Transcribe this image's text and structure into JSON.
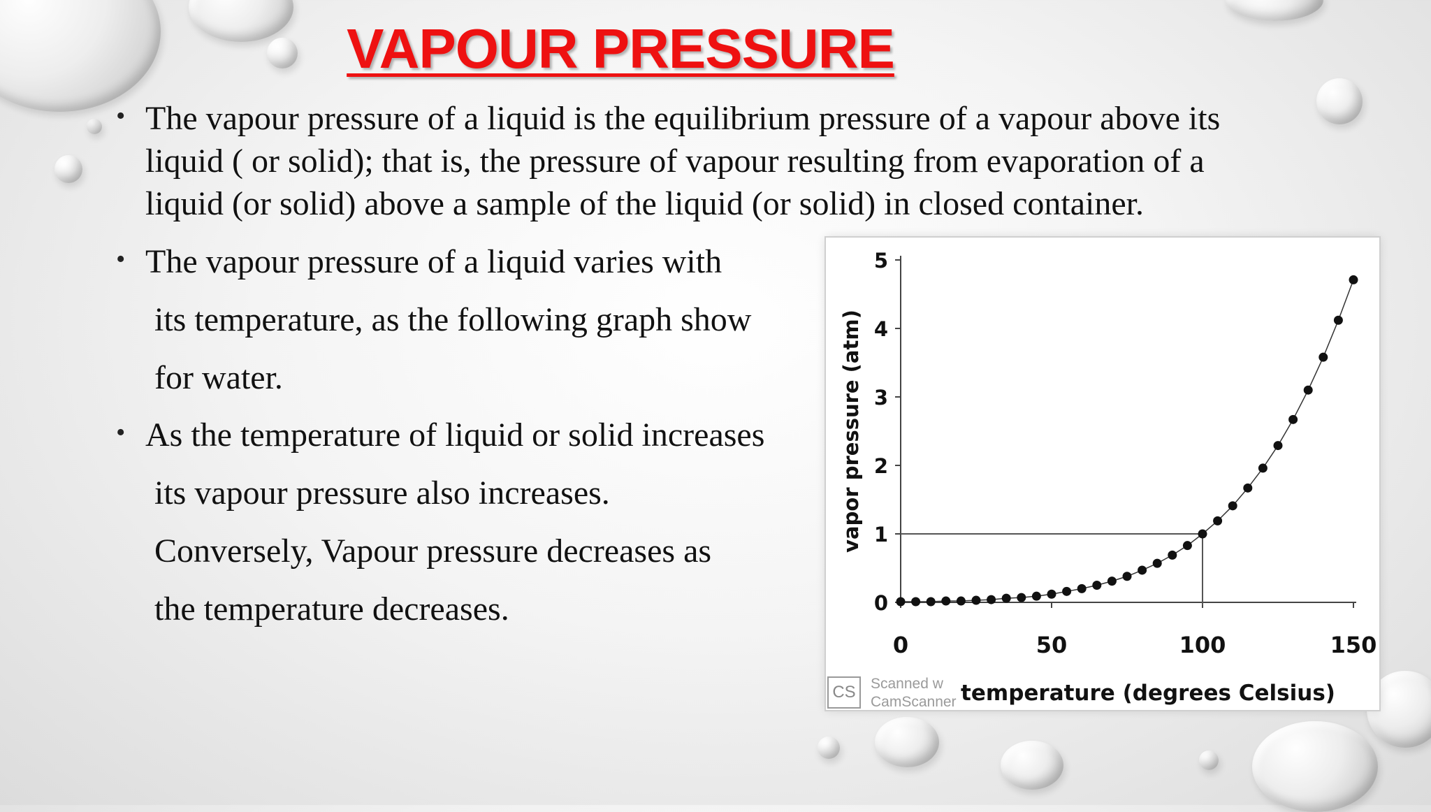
{
  "slide": {
    "title": "VAPOUR PRESSURE",
    "bullets": [
      {
        "lines": [
          "The vapour pressure of a liquid is the equilibrium pressure of a vapour above its",
          "liquid ( or solid); that is, the pressure of vapour resulting from evaporation of a",
          "liquid (or solid) above a sample of the liquid (or solid) in closed container."
        ]
      },
      {
        "lines": [
          "The vapour pressure of a liquid varies with",
          "its temperature, as the following graph show",
          "for water."
        ]
      },
      {
        "lines": [
          "As the temperature of liquid or solid increases",
          "its vapour pressure also increases.",
          "Conversely, Vapour pressure decreases as",
          "the temperature decreases."
        ]
      }
    ],
    "colors": {
      "title": "#ee1111",
      "text": "#111111",
      "curve": "#111111"
    }
  },
  "watermark": {
    "logo": "CS",
    "line1": "Scanned w",
    "line2": "CamScanner"
  },
  "chart_data": {
    "type": "scatter",
    "title": "",
    "xlabel": "temperature (degrees Celsius)",
    "ylabel": "vapor pressure (atm)",
    "xlim": [
      0,
      150
    ],
    "ylim": [
      0,
      5
    ],
    "x_ticks": [
      0,
      50,
      100,
      150
    ],
    "y_ticks": [
      0,
      1,
      2,
      3,
      4,
      5
    ],
    "grid": false,
    "reference_point": {
      "x": 100,
      "y": 1
    },
    "series": [
      {
        "x": [
          0,
          5,
          10,
          15,
          20,
          25,
          30,
          35,
          40,
          45,
          50,
          55,
          60,
          65,
          70,
          75,
          80,
          85,
          90,
          95,
          100,
          105,
          110,
          115,
          120,
          125,
          130,
          135,
          140,
          145,
          150
        ],
        "y": [
          0.01,
          0.01,
          0.01,
          0.02,
          0.02,
          0.03,
          0.04,
          0.06,
          0.07,
          0.09,
          0.12,
          0.16,
          0.2,
          0.25,
          0.31,
          0.38,
          0.47,
          0.57,
          0.69,
          0.83,
          1.0,
          1.19,
          1.41,
          1.67,
          1.96,
          2.29,
          2.67,
          3.1,
          3.58,
          4.12,
          4.71
        ]
      }
    ]
  }
}
